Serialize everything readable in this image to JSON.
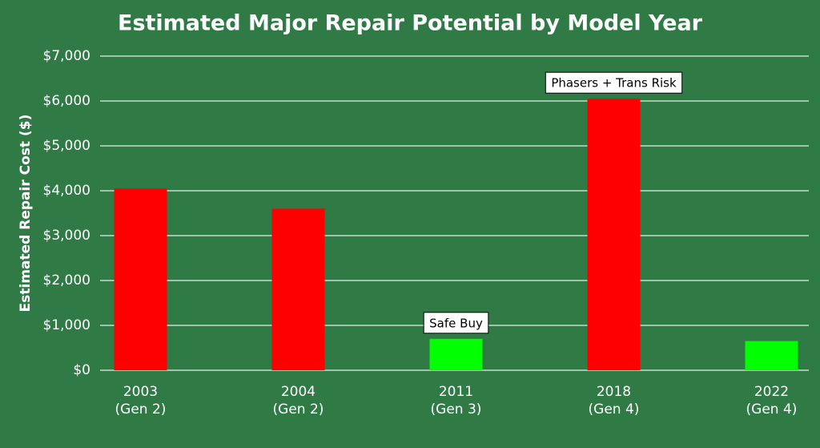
{
  "chart_data": {
    "type": "bar",
    "title": "Estimated Major Repair Potential by Model Year",
    "y_label": "Estimated Repair Cost ($)",
    "categories": [
      [
        "2003",
        "(Gen 2)"
      ],
      [
        "2004",
        "(Gen 2)"
      ],
      [
        "2011",
        "(Gen 3)"
      ],
      [
        "2018",
        "(Gen 4)"
      ],
      [
        "2022",
        "(Gen 4)"
      ]
    ],
    "values": [
      4050,
      3600,
      700,
      6050,
      650
    ],
    "colors": [
      "#ff0000",
      "#ff0000",
      "#00ff00",
      "#ff0000",
      "#00ff00"
    ],
    "annotations": [
      null,
      null,
      "Safe Buy",
      "Phasers + Trans Risk",
      null
    ],
    "ylim": [
      0,
      7000
    ],
    "yticks": [
      {
        "value": 0,
        "label": "$0"
      },
      {
        "value": 1000,
        "label": "$1,000"
      },
      {
        "value": 2000,
        "label": "$2,000"
      },
      {
        "value": 3000,
        "label": "$3,000"
      },
      {
        "value": 4000,
        "label": "$4,000"
      },
      {
        "value": 5000,
        "label": "$5,000"
      },
      {
        "value": 6000,
        "label": "$6,000"
      },
      {
        "value": 7000,
        "label": "$7,000"
      }
    ],
    "grid": true
  }
}
